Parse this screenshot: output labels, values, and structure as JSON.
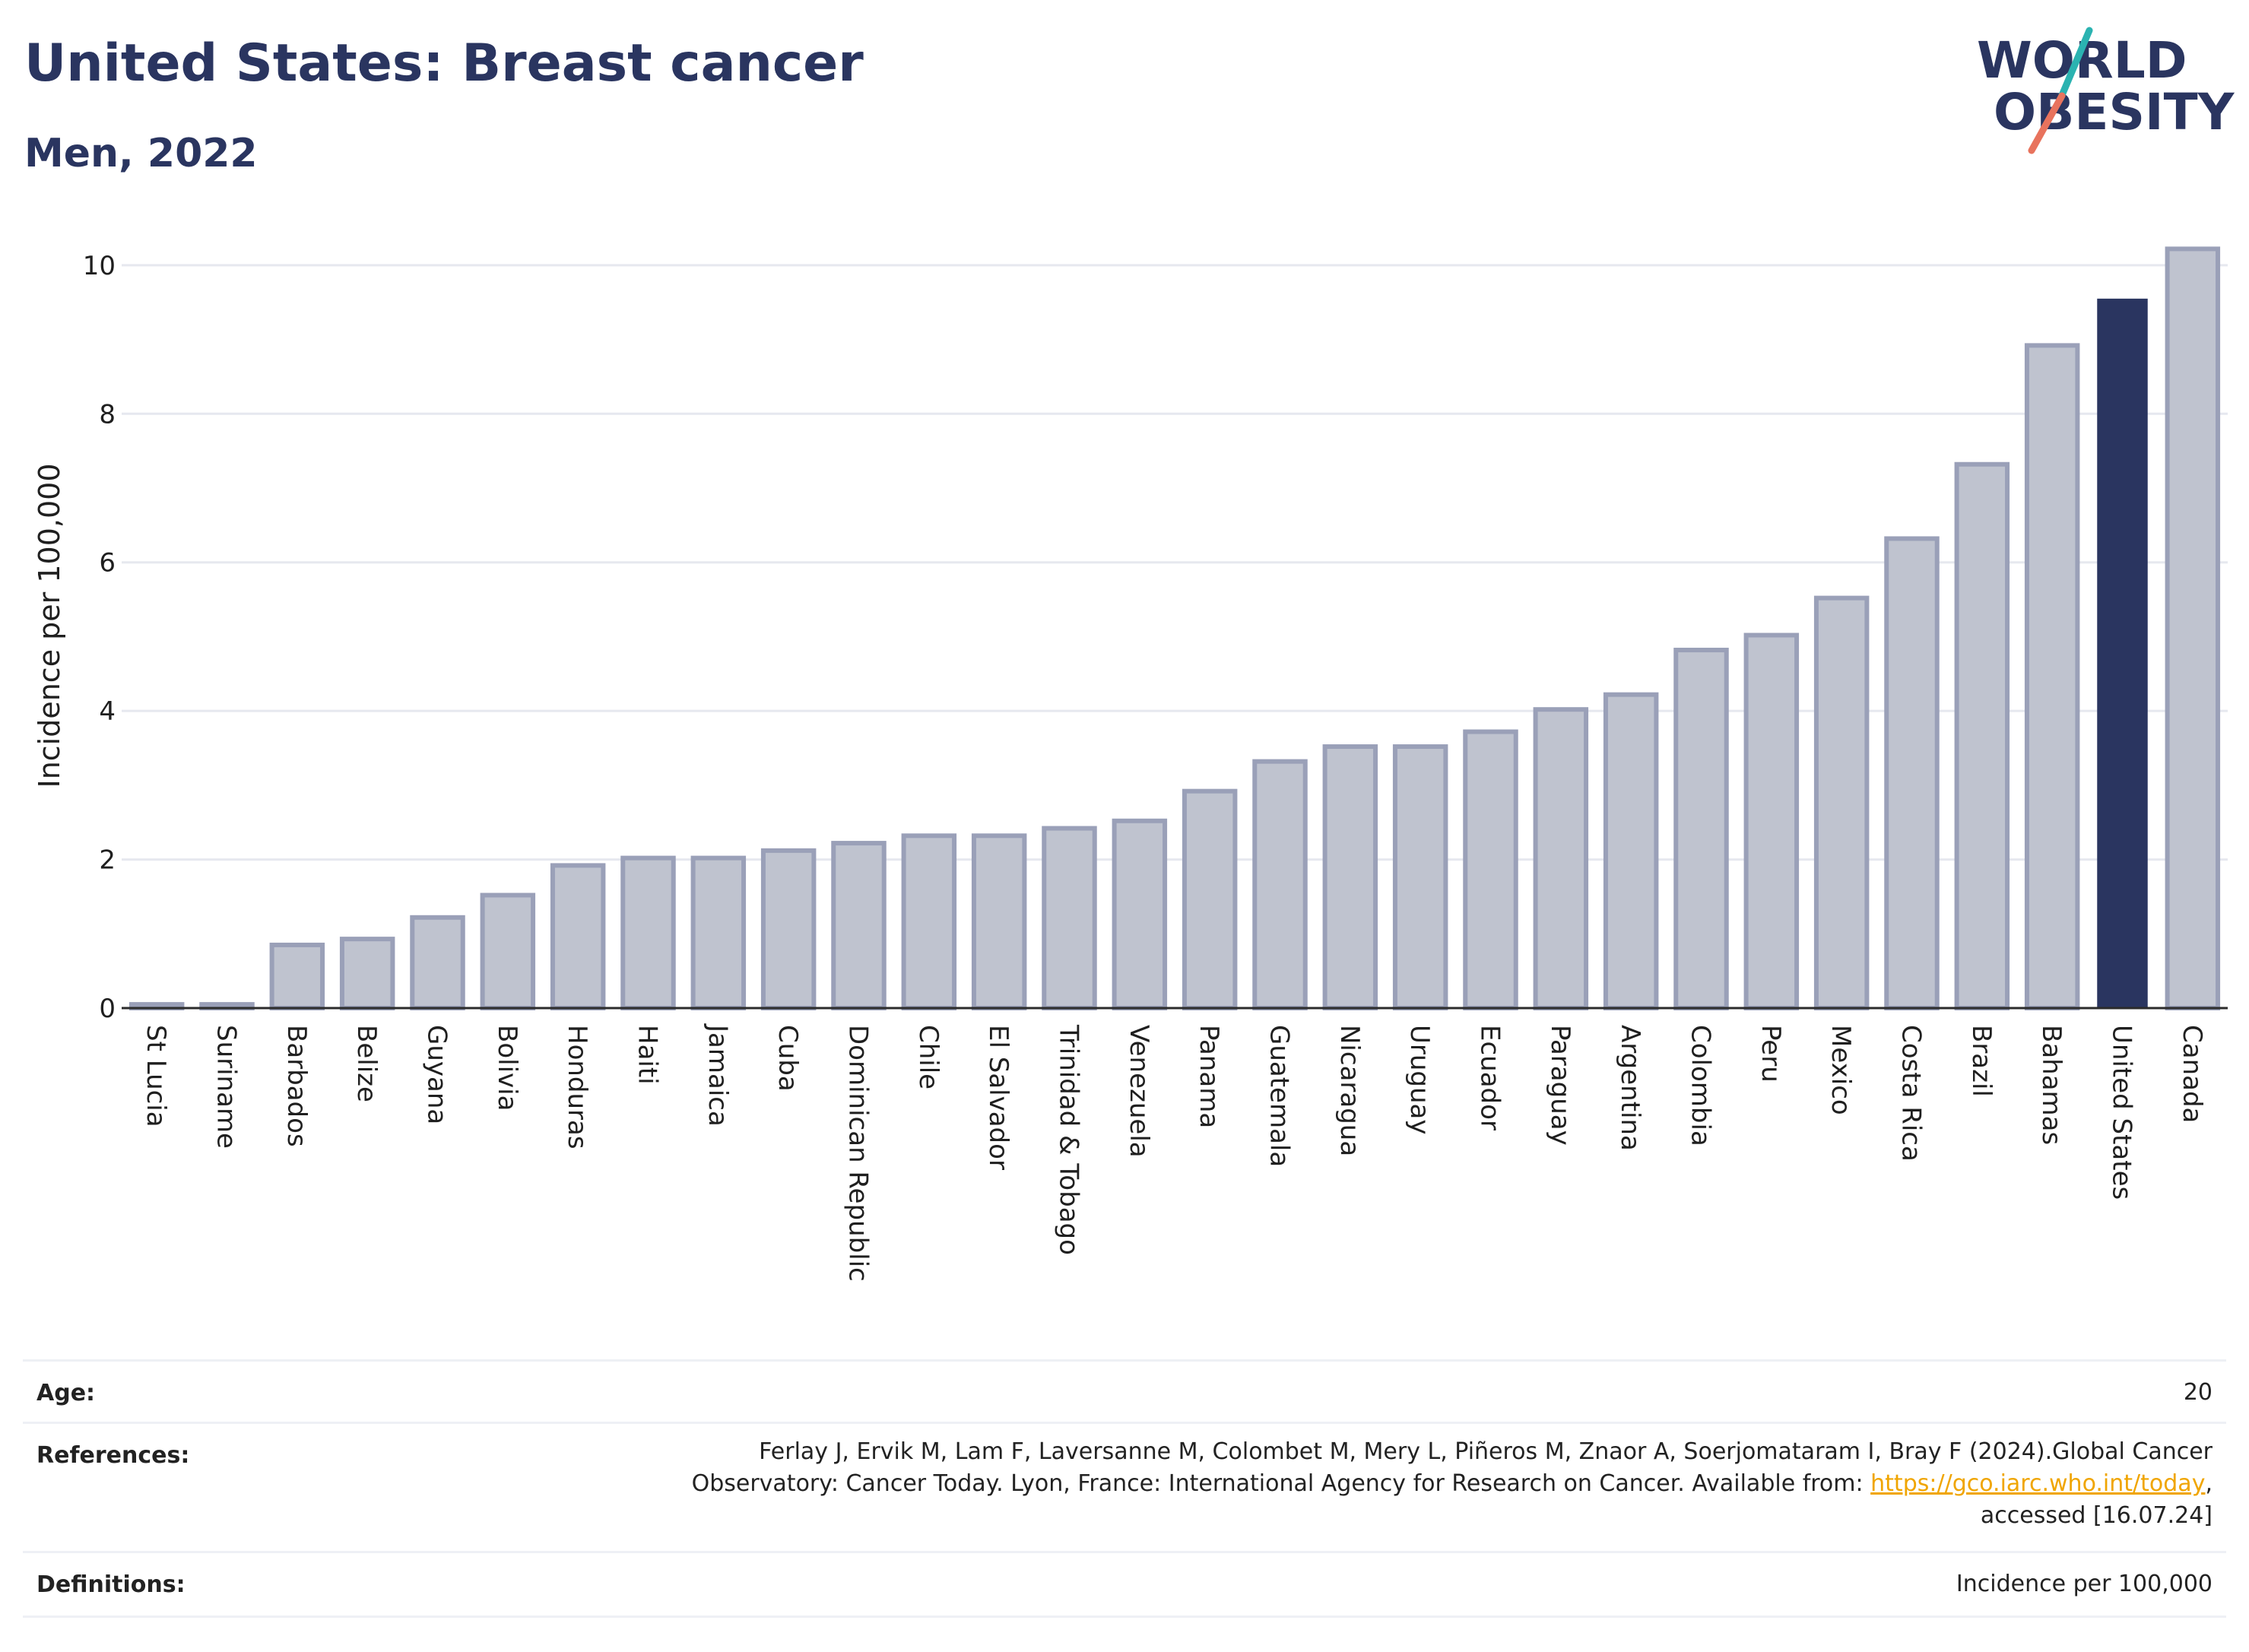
{
  "header": {
    "title": "United States: Breast cancer",
    "subtitle": "Men, 2022"
  },
  "logo": {
    "line1": "WORLD",
    "line2": "OBESITY",
    "colors": {
      "text": "#2a3560",
      "teal": "#2bb3b1",
      "coral": "#e8735d"
    }
  },
  "chart_data": {
    "type": "bar",
    "ylabel": "Incidence per 100,000",
    "ylim": [
      0,
      10.5
    ],
    "yticks": [
      0,
      2,
      4,
      6,
      8,
      10
    ],
    "grid": true,
    "highlight": "United States",
    "colors": {
      "bar": "#bfc3cf",
      "bar_edge": "#9aa0b8",
      "highlight": "#2a3560",
      "grid": "#e6e8ef"
    },
    "categories": [
      "St Lucia",
      "Suriname",
      "Barbados",
      "Belize",
      "Guyana",
      "Bolivia",
      "Honduras",
      "Haiti",
      "Jamaica",
      "Cuba",
      "Dominican Republic",
      "Chile",
      "El Salvador",
      "Trinidad & Tobago",
      "Venezuela",
      "Panama",
      "Guatemala",
      "Nicaragua",
      "Uruguay",
      "Ecuador",
      "Paraguay",
      "Argentina",
      "Colombia",
      "Peru",
      "Mexico",
      "Costa Rica",
      "Brazil",
      "Bahamas",
      "United States",
      "Canada"
    ],
    "values": [
      0.05,
      0.05,
      0.85,
      0.93,
      1.22,
      1.52,
      1.92,
      2.02,
      2.02,
      2.12,
      2.22,
      2.32,
      2.32,
      2.42,
      2.52,
      2.92,
      3.32,
      3.52,
      3.52,
      3.72,
      4.02,
      4.22,
      4.82,
      5.02,
      5.52,
      6.32,
      7.32,
      8.92,
      9.55,
      10.22
    ]
  },
  "meta": {
    "age_label": "Age:",
    "age_value": "20",
    "references_label": "References:",
    "references_line1": "Ferlay J, Ervik M, Lam F, Laversanne M, Colombet M, Mery L, Piñeros M, Znaor A, Soerjomataram I, Bray F (2024).Global Cancer",
    "references_line2_pre": "Observatory: Cancer Today. Lyon, France: International Agency for Research on Cancer. Available from: ",
    "references_link": "https://gco.iarc.who.int/today",
    "references_line2_post": ",",
    "references_line3": "accessed [16.07.24]",
    "definitions_label": "Definitions:",
    "definitions_value": "Incidence per 100,000"
  }
}
